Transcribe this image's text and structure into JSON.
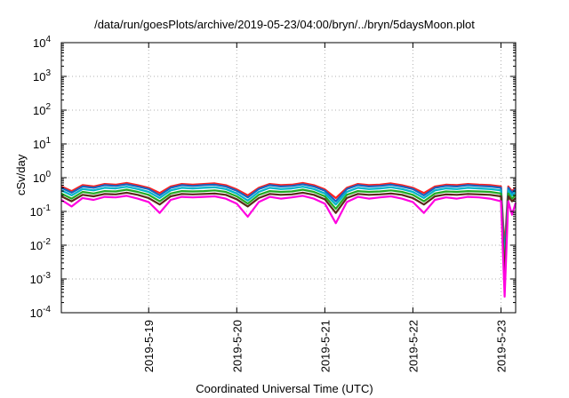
{
  "chart_data": {
    "type": "line",
    "title": "/data/run/goesPlots/archive/2019-05-23/04:00/bryn/../bryn/5daysMoon.plot",
    "xlabel": "Coordinated Universal Time (UTC)",
    "ylabel": "cSv/day",
    "yscale": "log",
    "ylim": [
      0.0001,
      10000
    ],
    "y_ticks": [
      {
        "value": 0.0001,
        "mantissa": "10",
        "exp": "-4"
      },
      {
        "value": 0.001,
        "mantissa": "10",
        "exp": "-3"
      },
      {
        "value": 0.01,
        "mantissa": "10",
        "exp": "-2"
      },
      {
        "value": 0.1,
        "mantissa": "10",
        "exp": "-1"
      },
      {
        "value": 1,
        "mantissa": "10",
        "exp": "0"
      },
      {
        "value": 10,
        "mantissa": "10",
        "exp": "1"
      },
      {
        "value": 100,
        "mantissa": "10",
        "exp": "2"
      },
      {
        "value": 1000,
        "mantissa": "10",
        "exp": "3"
      },
      {
        "value": 10000,
        "mantissa": "10",
        "exp": "4"
      }
    ],
    "xlim": [
      "2019-05-18 00:12",
      "2019-05-23 04:00"
    ],
    "x_ticks": [
      {
        "value": "2019-05-19 00:00",
        "label": "2019-5-19"
      },
      {
        "value": "2019-05-20 00:00",
        "label": "2019-5-20"
      },
      {
        "value": "2019-05-21 00:00",
        "label": "2019-5-21"
      },
      {
        "value": "2019-05-22 00:00",
        "label": "2019-5-22"
      },
      {
        "value": "2019-05-23 00:00",
        "label": "2019-5-23"
      }
    ],
    "grid": true,
    "legend": "none",
    "x": [
      "2019-05-18 00:12",
      "2019-05-18 03:00",
      "2019-05-18 06:00",
      "2019-05-18 09:00",
      "2019-05-18 12:00",
      "2019-05-18 15:00",
      "2019-05-18 18:00",
      "2019-05-18 21:00",
      "2019-05-19 00:00",
      "2019-05-19 03:00",
      "2019-05-19 06:00",
      "2019-05-19 09:00",
      "2019-05-19 12:00",
      "2019-05-19 15:00",
      "2019-05-19 18:00",
      "2019-05-19 21:00",
      "2019-05-20 00:00",
      "2019-05-20 03:00",
      "2019-05-20 06:00",
      "2019-05-20 09:00",
      "2019-05-20 12:00",
      "2019-05-20 15:00",
      "2019-05-20 18:00",
      "2019-05-20 21:00",
      "2019-05-21 00:00",
      "2019-05-21 03:00",
      "2019-05-21 06:00",
      "2019-05-21 09:00",
      "2019-05-21 12:00",
      "2019-05-21 15:00",
      "2019-05-21 18:00",
      "2019-05-21 21:00",
      "2019-05-22 00:00",
      "2019-05-22 03:00",
      "2019-05-22 06:00",
      "2019-05-22 09:00",
      "2019-05-22 12:00",
      "2019-05-22 15:00",
      "2019-05-22 18:00",
      "2019-05-22 21:00",
      "2019-05-23 00:00",
      "2019-05-23 01:00",
      "2019-05-23 02:00",
      "2019-05-23 03:00",
      "2019-05-23 04:00"
    ],
    "series": [
      {
        "color": "#ff2020",
        "values": [
          0.55,
          0.4,
          0.6,
          0.55,
          0.65,
          0.62,
          0.7,
          0.6,
          0.5,
          0.35,
          0.55,
          0.65,
          0.62,
          0.65,
          0.68,
          0.6,
          0.45,
          0.3,
          0.5,
          0.65,
          0.6,
          0.62,
          0.7,
          0.6,
          0.45,
          0.25,
          0.5,
          0.65,
          0.6,
          0.62,
          0.68,
          0.6,
          0.5,
          0.35,
          0.55,
          0.62,
          0.6,
          0.65,
          0.62,
          0.6,
          0.55,
          0.008,
          0.55,
          0.4,
          0.5
        ]
      },
      {
        "color": "#1565c0",
        "values": [
          0.5,
          0.36,
          0.55,
          0.5,
          0.6,
          0.57,
          0.64,
          0.55,
          0.46,
          0.3,
          0.5,
          0.6,
          0.57,
          0.6,
          0.62,
          0.55,
          0.41,
          0.26,
          0.46,
          0.6,
          0.55,
          0.57,
          0.64,
          0.55,
          0.41,
          0.2,
          0.46,
          0.6,
          0.55,
          0.57,
          0.62,
          0.55,
          0.46,
          0.3,
          0.5,
          0.57,
          0.55,
          0.6,
          0.57,
          0.55,
          0.5,
          0.004,
          0.5,
          0.36,
          0.46
        ]
      },
      {
        "color": "#00b4c8",
        "values": [
          0.42,
          0.3,
          0.46,
          0.42,
          0.5,
          0.48,
          0.54,
          0.46,
          0.38,
          0.25,
          0.42,
          0.5,
          0.48,
          0.5,
          0.52,
          0.46,
          0.34,
          0.21,
          0.38,
          0.5,
          0.46,
          0.48,
          0.54,
          0.46,
          0.34,
          0.16,
          0.38,
          0.5,
          0.46,
          0.48,
          0.52,
          0.46,
          0.38,
          0.25,
          0.42,
          0.48,
          0.46,
          0.5,
          0.48,
          0.46,
          0.42,
          0.0025,
          0.42,
          0.3,
          0.38
        ]
      },
      {
        "color": "#22aa22",
        "values": [
          0.34,
          0.24,
          0.38,
          0.34,
          0.4,
          0.39,
          0.44,
          0.38,
          0.31,
          0.2,
          0.34,
          0.4,
          0.39,
          0.4,
          0.42,
          0.38,
          0.28,
          0.17,
          0.31,
          0.4,
          0.38,
          0.39,
          0.44,
          0.38,
          0.28,
          0.12,
          0.31,
          0.4,
          0.38,
          0.39,
          0.42,
          0.38,
          0.31,
          0.2,
          0.34,
          0.39,
          0.38,
          0.4,
          0.39,
          0.38,
          0.34,
          0.0015,
          0.34,
          0.24,
          0.31
        ]
      },
      {
        "color": "#5a2a1a",
        "values": [
          0.28,
          0.2,
          0.31,
          0.28,
          0.33,
          0.32,
          0.36,
          0.31,
          0.25,
          0.16,
          0.28,
          0.33,
          0.32,
          0.33,
          0.34,
          0.31,
          0.23,
          0.14,
          0.25,
          0.33,
          0.31,
          0.32,
          0.36,
          0.31,
          0.23,
          0.09,
          0.25,
          0.33,
          0.31,
          0.32,
          0.34,
          0.31,
          0.25,
          0.16,
          0.28,
          0.32,
          0.31,
          0.33,
          0.32,
          0.31,
          0.28,
          0.0009,
          0.28,
          0.2,
          0.25
        ]
      },
      {
        "color": "#ff00e0",
        "values": [
          0.22,
          0.14,
          0.25,
          0.22,
          0.27,
          0.26,
          0.29,
          0.24,
          0.19,
          0.09,
          0.22,
          0.27,
          0.26,
          0.27,
          0.28,
          0.24,
          0.17,
          0.07,
          0.19,
          0.27,
          0.24,
          0.26,
          0.29,
          0.24,
          0.17,
          0.045,
          0.19,
          0.27,
          0.24,
          0.26,
          0.28,
          0.24,
          0.19,
          0.09,
          0.22,
          0.26,
          0.24,
          0.27,
          0.26,
          0.24,
          0.2,
          0.0003,
          0.2,
          0.08,
          0.18
        ]
      }
    ]
  }
}
